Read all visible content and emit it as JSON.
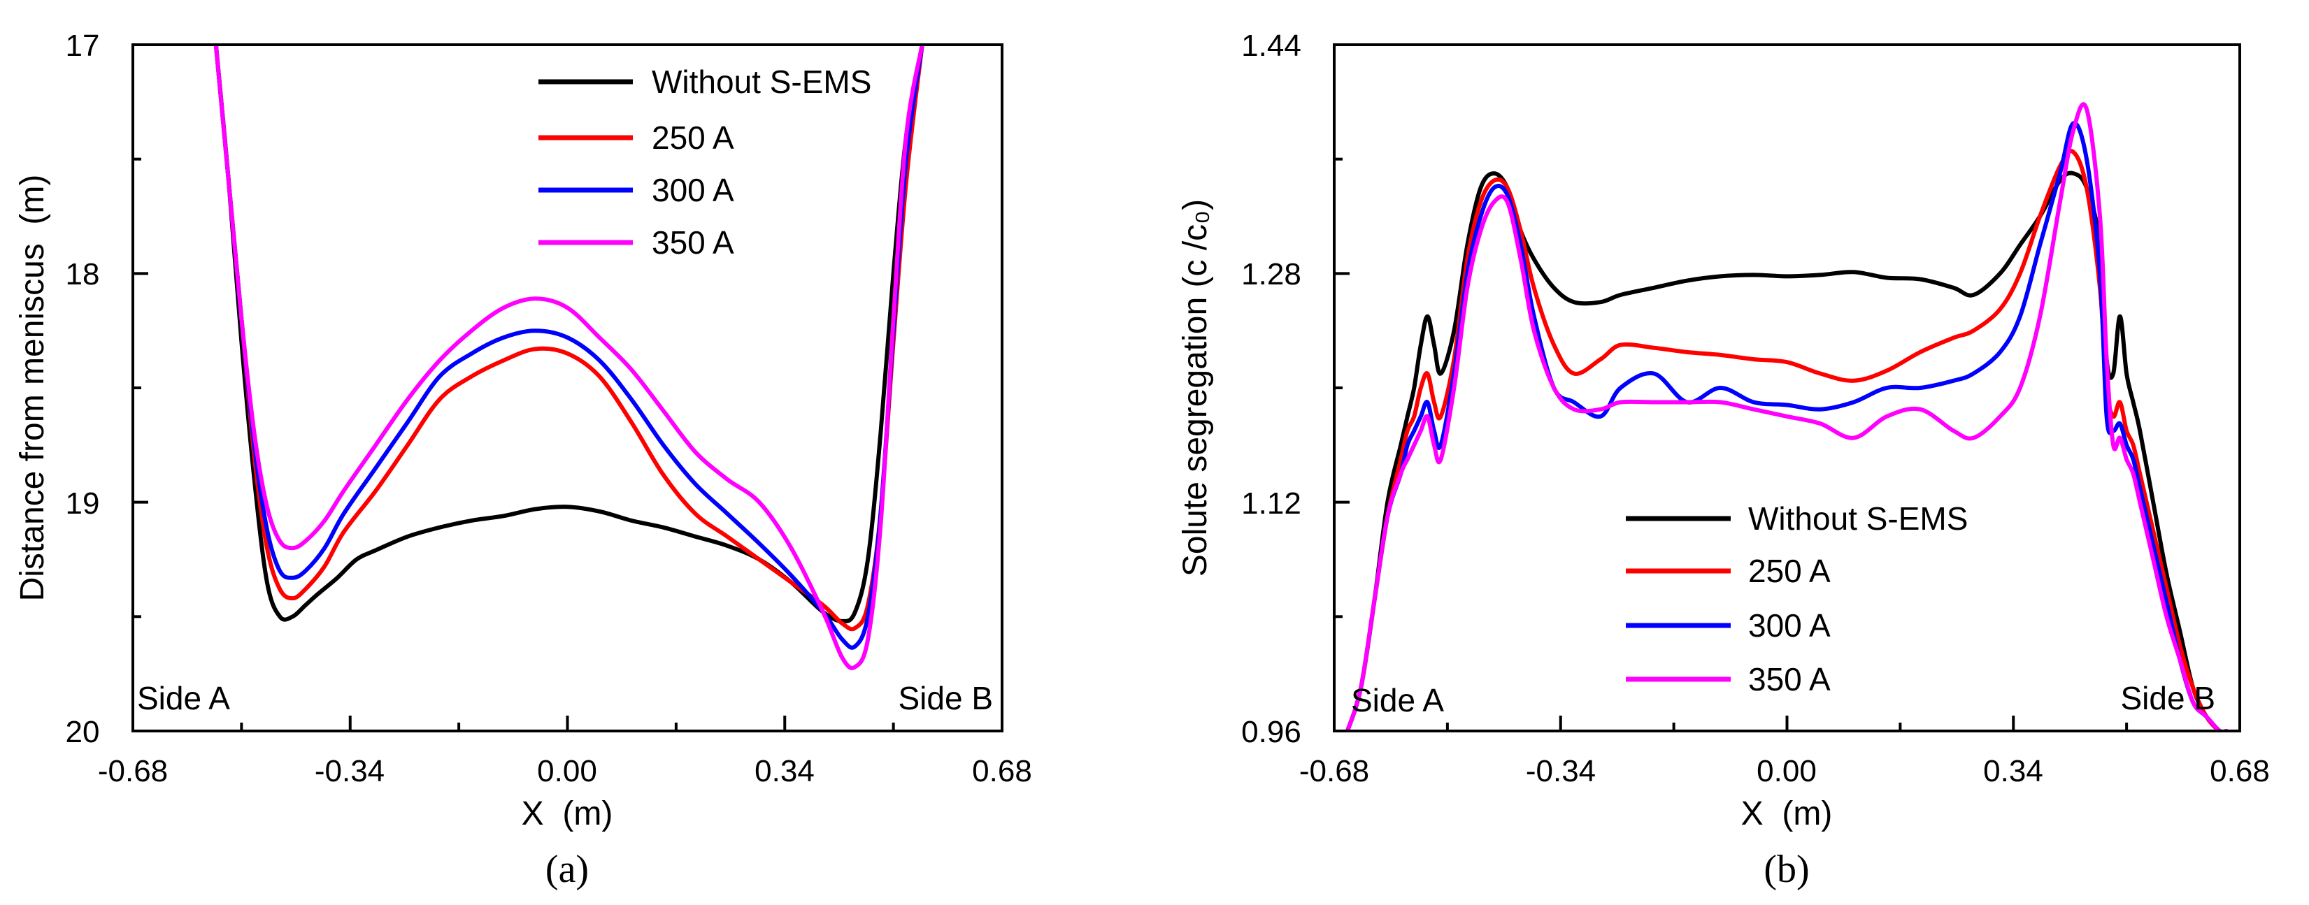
{
  "chart_data": [
    {
      "type": "line",
      "panel_label": "(a)",
      "xlabel": "X  (m)",
      "ylabel": "Distance from meniscus  (m)",
      "xlim": [
        -0.68,
        0.68
      ],
      "ylim": [
        17,
        20
      ],
      "y_inverted": true,
      "xticks": [
        "-0.68",
        "-0.34",
        "0.00",
        "0.34",
        "0.68"
      ],
      "yticks": [
        "17",
        "18",
        "19",
        "20"
      ],
      "xticks_values": [
        -0.68,
        -0.34,
        0.0,
        0.34,
        0.68
      ],
      "yticks_values": [
        17,
        18,
        19,
        20
      ],
      "annotations": [
        "Side A",
        "Side B"
      ],
      "legend_position": "top-right",
      "series": [
        {
          "name": "Without S-EMS",
          "color": "#000000",
          "x": [
            -0.55,
            -0.53,
            -0.51,
            -0.49,
            -0.47,
            -0.45,
            -0.43,
            -0.41,
            -0.39,
            -0.36,
            -0.33,
            -0.3,
            -0.25,
            -0.2,
            -0.15,
            -0.1,
            -0.05,
            0.0,
            0.05,
            0.1,
            0.15,
            0.2,
            0.25,
            0.3,
            0.35,
            0.4,
            0.43,
            0.45,
            0.47,
            0.49,
            0.51,
            0.53,
            0.555
          ],
          "y": [
            17.0,
            17.6,
            18.3,
            18.9,
            19.35,
            19.5,
            19.5,
            19.45,
            19.4,
            19.33,
            19.25,
            19.21,
            19.15,
            19.11,
            19.08,
            19.06,
            19.03,
            19.02,
            19.04,
            19.08,
            19.11,
            19.15,
            19.19,
            19.25,
            19.35,
            19.48,
            19.52,
            19.48,
            19.25,
            18.7,
            18.0,
            17.4,
            17.0
          ]
        },
        {
          "name": "250 A",
          "color": "#ff0000",
          "x": [
            -0.55,
            -0.53,
            -0.51,
            -0.49,
            -0.47,
            -0.45,
            -0.43,
            -0.41,
            -0.38,
            -0.35,
            -0.3,
            -0.25,
            -0.2,
            -0.15,
            -0.1,
            -0.05,
            0.0,
            0.05,
            0.1,
            0.15,
            0.2,
            0.25,
            0.3,
            0.35,
            0.4,
            0.43,
            0.45,
            0.47,
            0.49,
            0.51,
            0.53,
            0.555
          ],
          "y": [
            17.0,
            17.6,
            18.2,
            18.8,
            19.2,
            19.38,
            19.42,
            19.38,
            19.28,
            19.13,
            18.95,
            18.75,
            18.55,
            18.45,
            18.38,
            18.33,
            18.35,
            18.45,
            18.65,
            18.88,
            19.05,
            19.15,
            19.25,
            19.35,
            19.45,
            19.53,
            19.55,
            19.45,
            19.05,
            18.3,
            17.6,
            17.0
          ]
        },
        {
          "name": "300 A",
          "color": "#0000ff",
          "x": [
            -0.55,
            -0.53,
            -0.51,
            -0.49,
            -0.47,
            -0.45,
            -0.43,
            -0.41,
            -0.38,
            -0.35,
            -0.3,
            -0.25,
            -0.2,
            -0.15,
            -0.1,
            -0.05,
            0.0,
            0.05,
            0.1,
            0.15,
            0.2,
            0.25,
            0.3,
            0.35,
            0.4,
            0.43,
            0.45,
            0.47,
            0.49,
            0.51,
            0.53,
            0.555
          ],
          "y": [
            17.0,
            17.6,
            18.2,
            18.75,
            19.12,
            19.3,
            19.33,
            19.3,
            19.2,
            19.05,
            18.85,
            18.65,
            18.45,
            18.35,
            18.28,
            18.25,
            18.28,
            18.38,
            18.55,
            18.75,
            18.92,
            19.05,
            19.18,
            19.32,
            19.48,
            19.6,
            19.63,
            19.5,
            19.05,
            18.25,
            17.5,
            17.0
          ]
        },
        {
          "name": "350 A",
          "color": "#ff00ff",
          "x": [
            -0.55,
            -0.53,
            -0.51,
            -0.49,
            -0.47,
            -0.45,
            -0.43,
            -0.41,
            -0.38,
            -0.35,
            -0.3,
            -0.25,
            -0.2,
            -0.15,
            -0.1,
            -0.05,
            0.0,
            0.05,
            0.1,
            0.15,
            0.2,
            0.25,
            0.3,
            0.35,
            0.4,
            0.43,
            0.45,
            0.47,
            0.49,
            0.51,
            0.53,
            0.555
          ],
          "y": [
            17.0,
            17.6,
            18.2,
            18.7,
            19.02,
            19.17,
            19.2,
            19.17,
            19.08,
            18.95,
            18.75,
            18.55,
            18.38,
            18.25,
            18.15,
            18.11,
            18.15,
            18.28,
            18.42,
            18.6,
            18.78,
            18.9,
            19.0,
            19.2,
            19.48,
            19.68,
            19.72,
            19.6,
            19.1,
            18.2,
            17.4,
            17.0
          ]
        }
      ]
    },
    {
      "type": "line",
      "panel_label": "(b)",
      "xlabel": "X  (m)",
      "ylabel": "Solute segregation (c /c₀)",
      "xlim": [
        -0.68,
        0.68
      ],
      "ylim": [
        0.96,
        1.44
      ],
      "xticks": [
        "-0.68",
        "-0.34",
        "0.00",
        "0.34",
        "0.68"
      ],
      "yticks": [
        "0.96",
        "1.12",
        "1.28",
        "1.44"
      ],
      "xticks_values": [
        -0.68,
        -0.34,
        0.0,
        0.34,
        0.68
      ],
      "yticks_values": [
        0.96,
        1.12,
        1.28,
        1.44
      ],
      "annotations": [
        "Side A",
        "Side B"
      ],
      "legend_position": "bottom-center",
      "series": [
        {
          "name": "Without S-EMS",
          "color": "#000000",
          "x": [
            -0.66,
            -0.64,
            -0.62,
            -0.6,
            -0.58,
            -0.57,
            -0.56,
            -0.55,
            -0.54,
            -0.53,
            -0.52,
            -0.5,
            -0.48,
            -0.46,
            -0.44,
            -0.42,
            -0.4,
            -0.38,
            -0.35,
            -0.32,
            -0.28,
            -0.25,
            -0.2,
            -0.15,
            -0.1,
            -0.05,
            0.0,
            0.05,
            0.1,
            0.15,
            0.2,
            0.25,
            0.28,
            0.32,
            0.35,
            0.38,
            0.41,
            0.43,
            0.45,
            0.47,
            0.48,
            0.49,
            0.5,
            0.51,
            0.52,
            0.53,
            0.55,
            0.57,
            0.59,
            0.61,
            0.63,
            0.65,
            0.66
          ],
          "y": [
            0.96,
            0.99,
            1.05,
            1.12,
            1.16,
            1.18,
            1.2,
            1.23,
            1.25,
            1.23,
            1.21,
            1.24,
            1.3,
            1.34,
            1.35,
            1.34,
            1.31,
            1.29,
            1.27,
            1.26,
            1.26,
            1.265,
            1.27,
            1.275,
            1.278,
            1.279,
            1.278,
            1.279,
            1.281,
            1.277,
            1.276,
            1.27,
            1.265,
            1.28,
            1.3,
            1.32,
            1.345,
            1.35,
            1.34,
            1.3,
            1.22,
            1.21,
            1.25,
            1.21,
            1.19,
            1.17,
            1.12,
            1.07,
            1.03,
            0.99,
            0.97,
            0.96,
            0.96
          ]
        },
        {
          "name": "250 A",
          "color": "#ff0000",
          "x": [
            -0.66,
            -0.64,
            -0.62,
            -0.6,
            -0.58,
            -0.57,
            -0.56,
            -0.55,
            -0.54,
            -0.53,
            -0.52,
            -0.5,
            -0.48,
            -0.46,
            -0.44,
            -0.42,
            -0.4,
            -0.38,
            -0.35,
            -0.32,
            -0.28,
            -0.25,
            -0.2,
            -0.15,
            -0.1,
            -0.05,
            0.0,
            0.05,
            0.1,
            0.15,
            0.2,
            0.25,
            0.28,
            0.32,
            0.35,
            0.38,
            0.41,
            0.43,
            0.45,
            0.47,
            0.48,
            0.49,
            0.5,
            0.51,
            0.52,
            0.53,
            0.55,
            0.57,
            0.59,
            0.61,
            0.63,
            0.65,
            0.66
          ],
          "y": [
            0.96,
            0.99,
            1.05,
            1.11,
            1.15,
            1.17,
            1.18,
            1.2,
            1.21,
            1.19,
            1.18,
            1.22,
            1.29,
            1.33,
            1.345,
            1.34,
            1.31,
            1.27,
            1.23,
            1.21,
            1.22,
            1.23,
            1.228,
            1.225,
            1.223,
            1.22,
            1.218,
            1.21,
            1.205,
            1.212,
            1.225,
            1.235,
            1.24,
            1.255,
            1.28,
            1.32,
            1.355,
            1.365,
            1.34,
            1.27,
            1.2,
            1.18,
            1.19,
            1.17,
            1.16,
            1.14,
            1.1,
            1.06,
            1.02,
            0.99,
            0.97,
            0.96,
            0.96
          ]
        },
        {
          "name": "300 A",
          "color": "#0000ff",
          "x": [
            -0.66,
            -0.64,
            -0.62,
            -0.6,
            -0.58,
            -0.57,
            -0.56,
            -0.55,
            -0.54,
            -0.53,
            -0.52,
            -0.5,
            -0.48,
            -0.46,
            -0.44,
            -0.42,
            -0.4,
            -0.38,
            -0.35,
            -0.32,
            -0.28,
            -0.25,
            -0.2,
            -0.15,
            -0.1,
            -0.05,
            0.0,
            0.05,
            0.1,
            0.15,
            0.2,
            0.25,
            0.28,
            0.32,
            0.35,
            0.38,
            0.41,
            0.43,
            0.45,
            0.47,
            0.48,
            0.49,
            0.5,
            0.51,
            0.52,
            0.53,
            0.55,
            0.57,
            0.59,
            0.61,
            0.63,
            0.65,
            0.66
          ],
          "y": [
            0.96,
            0.99,
            1.05,
            1.11,
            1.14,
            1.16,
            1.17,
            1.18,
            1.19,
            1.17,
            1.16,
            1.21,
            1.28,
            1.32,
            1.34,
            1.335,
            1.3,
            1.25,
            1.2,
            1.19,
            1.18,
            1.2,
            1.21,
            1.19,
            1.2,
            1.19,
            1.188,
            1.185,
            1.19,
            1.2,
            1.2,
            1.205,
            1.21,
            1.225,
            1.25,
            1.3,
            1.35,
            1.385,
            1.36,
            1.28,
            1.18,
            1.17,
            1.175,
            1.16,
            1.15,
            1.13,
            1.09,
            1.05,
            1.01,
            0.98,
            0.97,
            0.96,
            0.96
          ]
        },
        {
          "name": "350 A",
          "color": "#ff00ff",
          "x": [
            -0.66,
            -0.64,
            -0.62,
            -0.6,
            -0.58,
            -0.57,
            -0.56,
            -0.55,
            -0.54,
            -0.53,
            -0.52,
            -0.5,
            -0.48,
            -0.46,
            -0.44,
            -0.42,
            -0.4,
            -0.38,
            -0.35,
            -0.32,
            -0.28,
            -0.25,
            -0.2,
            -0.15,
            -0.1,
            -0.05,
            0.0,
            0.05,
            0.1,
            0.15,
            0.2,
            0.25,
            0.28,
            0.32,
            0.35,
            0.38,
            0.41,
            0.43,
            0.45,
            0.47,
            0.48,
            0.49,
            0.5,
            0.51,
            0.52,
            0.53,
            0.55,
            0.57,
            0.59,
            0.61,
            0.63,
            0.65,
            0.66
          ],
          "y": [
            0.96,
            0.99,
            1.05,
            1.11,
            1.14,
            1.15,
            1.16,
            1.17,
            1.18,
            1.16,
            1.15,
            1.2,
            1.27,
            1.31,
            1.33,
            1.33,
            1.29,
            1.24,
            1.2,
            1.185,
            1.185,
            1.19,
            1.19,
            1.19,
            1.19,
            1.185,
            1.18,
            1.175,
            1.165,
            1.18,
            1.185,
            1.17,
            1.165,
            1.18,
            1.2,
            1.25,
            1.33,
            1.38,
            1.395,
            1.32,
            1.22,
            1.16,
            1.165,
            1.15,
            1.14,
            1.12,
            1.08,
            1.04,
            1.01,
            0.98,
            0.97,
            0.96,
            0.96
          ]
        }
      ]
    }
  ]
}
